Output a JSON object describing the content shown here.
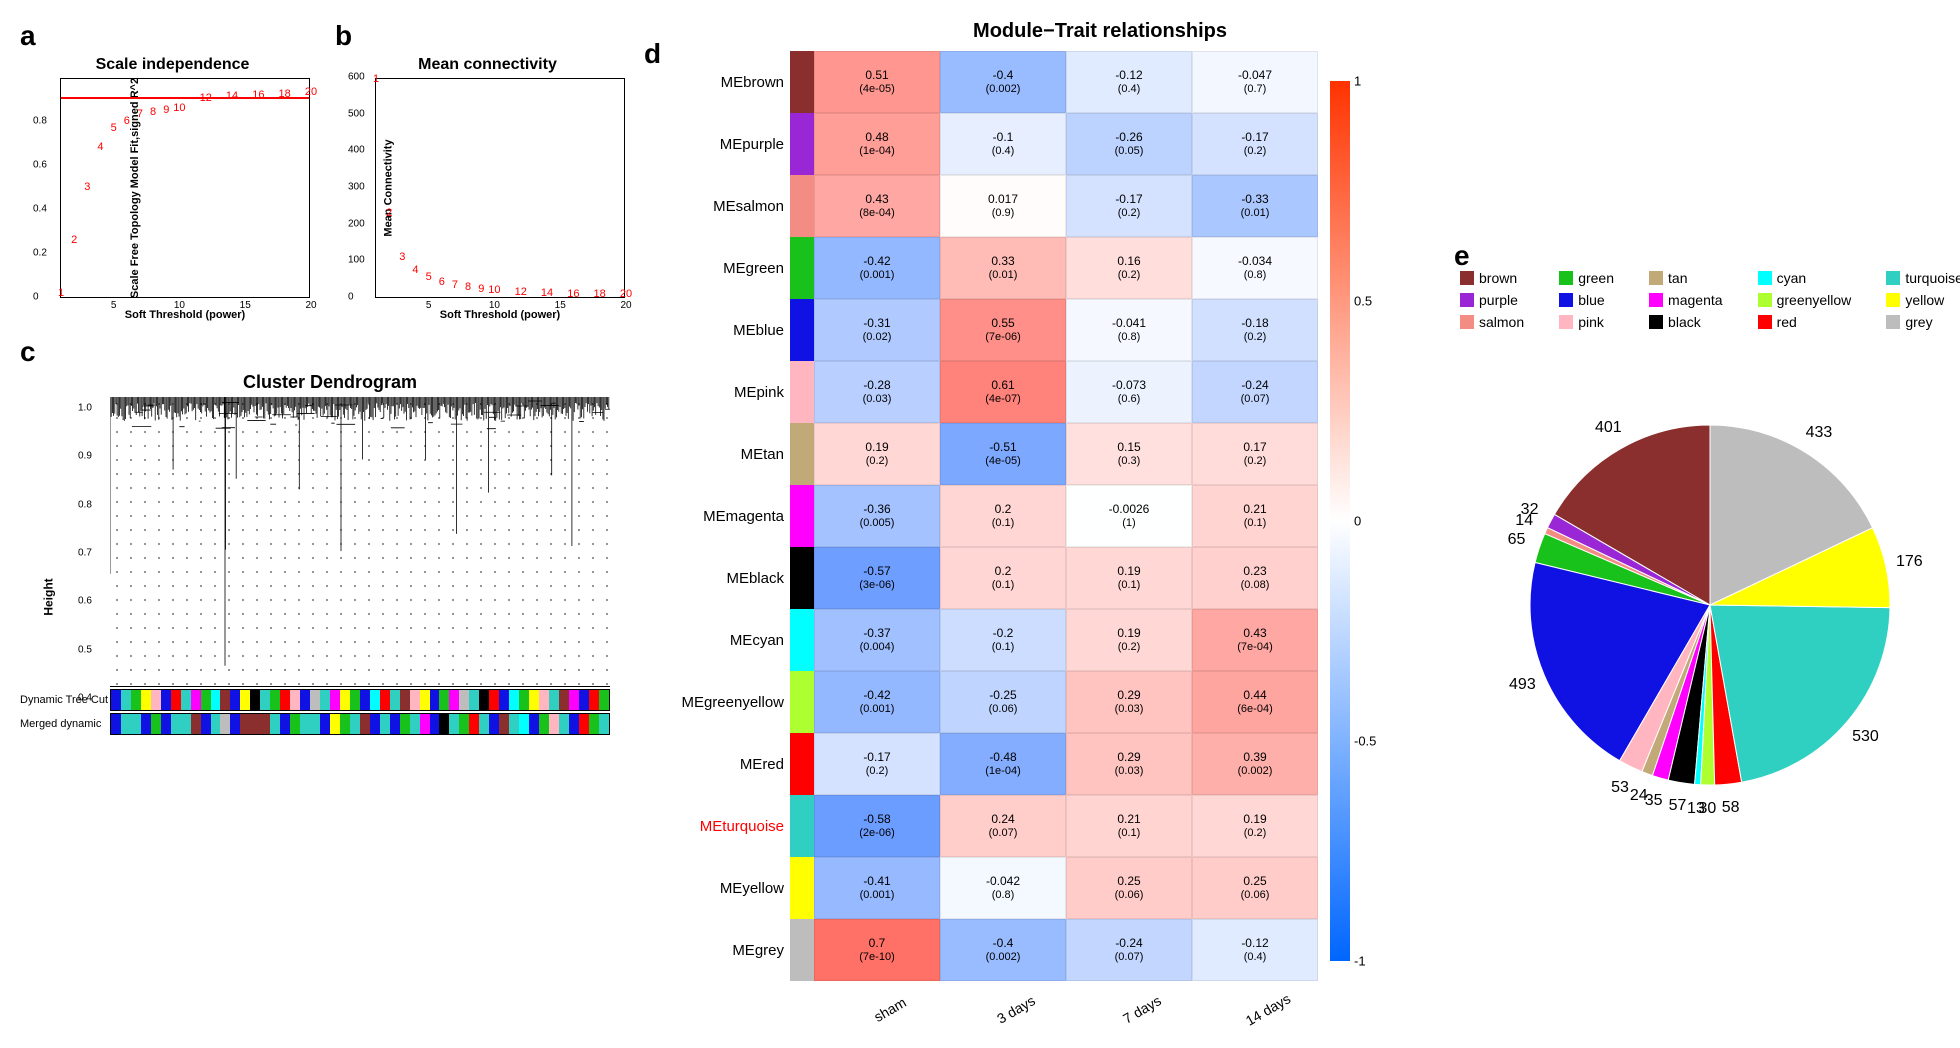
{
  "colors": {
    "brown": "#8b2e2e",
    "purple": "#9a27d6",
    "salmon": "#f38c82",
    "green": "#18c21a",
    "blue": "#1012e3",
    "pink": "#ffb6c1",
    "tan": "#c2a978",
    "magenta": "#ff00ff",
    "black": "#000000",
    "cyan": "#00ffff",
    "greenyellow": "#adff2f",
    "red": "#ff0000",
    "turquoise": "#2fd0c1",
    "yellow": "#ffff00",
    "grey": "#bdbdbd"
  },
  "panel_a": {
    "label": "a",
    "title": "Scale independence",
    "xlabel": "Soft Threshold (power)",
    "ylabel": "Scale Free Topology Model Fit,signed R^2",
    "xlim": [
      1,
      20
    ],
    "ylim": [
      0,
      1
    ],
    "xticks": [
      5,
      10,
      15,
      20
    ],
    "yticks": [
      0.0,
      0.2,
      0.4,
      0.6,
      0.8
    ],
    "hline": 0.9,
    "points": [
      {
        "x": 1,
        "y": 0.02,
        "lbl": "1"
      },
      {
        "x": 2,
        "y": 0.26,
        "lbl": "2"
      },
      {
        "x": 3,
        "y": 0.5,
        "lbl": "3"
      },
      {
        "x": 4,
        "y": 0.68,
        "lbl": "4"
      },
      {
        "x": 5,
        "y": 0.77,
        "lbl": "5"
      },
      {
        "x": 6,
        "y": 0.8,
        "lbl": "6"
      },
      {
        "x": 7,
        "y": 0.83,
        "lbl": "7"
      },
      {
        "x": 8,
        "y": 0.84,
        "lbl": "8"
      },
      {
        "x": 9,
        "y": 0.85,
        "lbl": "9"
      },
      {
        "x": 10,
        "y": 0.86,
        "lbl": "10"
      },
      {
        "x": 12,
        "y": 0.905,
        "lbl": "12"
      },
      {
        "x": 14,
        "y": 0.915,
        "lbl": "14"
      },
      {
        "x": 16,
        "y": 0.92,
        "lbl": "16"
      },
      {
        "x": 18,
        "y": 0.925,
        "lbl": "18"
      },
      {
        "x": 20,
        "y": 0.93,
        "lbl": "20"
      }
    ]
  },
  "panel_b": {
    "label": "b",
    "title": "Mean connectivity",
    "xlabel": "Soft Threshold (power)",
    "ylabel": "Mean Connectivity",
    "xlim": [
      1,
      20
    ],
    "ylim": [
      0,
      600
    ],
    "xticks": [
      5,
      10,
      15,
      20
    ],
    "yticks": [
      0,
      100,
      200,
      300,
      400,
      500,
      600
    ],
    "points": [
      {
        "x": 1,
        "y": 595,
        "lbl": "1"
      },
      {
        "x": 2,
        "y": 230,
        "lbl": "2"
      },
      {
        "x": 3,
        "y": 110,
        "lbl": "3"
      },
      {
        "x": 4,
        "y": 75,
        "lbl": "4"
      },
      {
        "x": 5,
        "y": 55,
        "lbl": "5"
      },
      {
        "x": 6,
        "y": 40,
        "lbl": "6"
      },
      {
        "x": 7,
        "y": 32,
        "lbl": "7"
      },
      {
        "x": 8,
        "y": 26,
        "lbl": "8"
      },
      {
        "x": 9,
        "y": 22,
        "lbl": "9"
      },
      {
        "x": 10,
        "y": 18,
        "lbl": "10"
      },
      {
        "x": 12,
        "y": 14,
        "lbl": "12"
      },
      {
        "x": 14,
        "y": 11,
        "lbl": "14"
      },
      {
        "x": 16,
        "y": 9,
        "lbl": "16"
      },
      {
        "x": 18,
        "y": 8,
        "lbl": "18"
      },
      {
        "x": 20,
        "y": 7,
        "lbl": "20"
      }
    ]
  },
  "panel_c": {
    "label": "c",
    "title": "Cluster Dendrogram",
    "ylabel": "Height",
    "yticks": [
      0.4,
      0.5,
      0.6,
      0.7,
      0.8,
      0.9,
      1.0
    ],
    "row1_label": "Dynamic Tree Cut",
    "row2_label": "Merged dynamic",
    "band1": [
      "blue",
      "turquoise",
      "green",
      "yellow",
      "pink",
      "blue",
      "red",
      "turquoise",
      "magenta",
      "green",
      "cyan",
      "brown",
      "blue",
      "yellow",
      "black",
      "turquoise",
      "green",
      "red",
      "pink",
      "blue",
      "grey",
      "turquoise",
      "magenta",
      "yellow",
      "green",
      "blue",
      "cyan",
      "red",
      "turquoise",
      "brown",
      "pink",
      "yellow",
      "blue",
      "green",
      "magenta",
      "grey",
      "turquoise",
      "black",
      "red",
      "blue",
      "cyan",
      "green",
      "yellow",
      "pink",
      "turquoise",
      "brown",
      "magenta",
      "blue",
      "red",
      "green"
    ],
    "band2": [
      "blue",
      "turquoise",
      "turquoise",
      "blue",
      "green",
      "blue",
      "turquoise",
      "turquoise",
      "brown",
      "blue",
      "turquoise",
      "grey",
      "blue",
      "brown",
      "brown",
      "brown",
      "turquoise",
      "blue",
      "green",
      "turquoise",
      "turquoise",
      "blue",
      "yellow",
      "green",
      "turquoise",
      "brown",
      "blue",
      "turquoise",
      "blue",
      "green",
      "turquoise",
      "magenta",
      "blue",
      "black",
      "turquoise",
      "green",
      "red",
      "turquoise",
      "blue",
      "brown",
      "turquoise",
      "cyan",
      "blue",
      "green",
      "pink",
      "turquoise",
      "blue",
      "red",
      "green",
      "turquoise"
    ]
  },
  "panel_d": {
    "label": "d",
    "title": "Module−Trait relationships",
    "columns": [
      "sham",
      "3 days",
      "7 days",
      "14 days"
    ],
    "colorbar": {
      "min": -1,
      "max": 1,
      "ticks": [
        1,
        0.5,
        0,
        -0.5,
        -1
      ]
    },
    "rows": [
      {
        "name": "MEbrown",
        "color": "brown",
        "cells": [
          {
            "r": 0.51,
            "p": "4e-05"
          },
          {
            "r": -0.4,
            "p": "0.002"
          },
          {
            "r": -0.12,
            "p": "0.4"
          },
          {
            "r": -0.047,
            "p": "0.7"
          }
        ]
      },
      {
        "name": "MEpurple",
        "color": "purple",
        "cells": [
          {
            "r": 0.48,
            "p": "1e-04"
          },
          {
            "r": -0.1,
            "p": "0.4"
          },
          {
            "r": -0.26,
            "p": "0.05"
          },
          {
            "r": -0.17,
            "p": "0.2"
          }
        ]
      },
      {
        "name": "MEsalmon",
        "color": "salmon",
        "cells": [
          {
            "r": 0.43,
            "p": "8e-04"
          },
          {
            "r": 0.017,
            "p": "0.9"
          },
          {
            "r": -0.17,
            "p": "0.2"
          },
          {
            "r": -0.33,
            "p": "0.01"
          }
        ]
      },
      {
        "name": "MEgreen",
        "color": "green",
        "cells": [
          {
            "r": -0.42,
            "p": "0.001"
          },
          {
            "r": 0.33,
            "p": "0.01"
          },
          {
            "r": 0.16,
            "p": "0.2"
          },
          {
            "r": -0.034,
            "p": "0.8"
          }
        ]
      },
      {
        "name": "MEblue",
        "color": "blue",
        "cells": [
          {
            "r": -0.31,
            "p": "0.02"
          },
          {
            "r": 0.55,
            "p": "7e-06"
          },
          {
            "r": -0.041,
            "p": "0.8"
          },
          {
            "r": -0.18,
            "p": "0.2"
          }
        ]
      },
      {
        "name": "MEpink",
        "color": "pink",
        "cells": [
          {
            "r": -0.28,
            "p": "0.03"
          },
          {
            "r": 0.61,
            "p": "4e-07"
          },
          {
            "r": -0.073,
            "p": "0.6"
          },
          {
            "r": -0.24,
            "p": "0.07"
          }
        ]
      },
      {
        "name": "MEtan",
        "color": "tan",
        "cells": [
          {
            "r": 0.19,
            "p": "0.2"
          },
          {
            "r": -0.51,
            "p": "4e-05"
          },
          {
            "r": 0.15,
            "p": "0.3"
          },
          {
            "r": 0.17,
            "p": "0.2"
          }
        ]
      },
      {
        "name": "MEmagenta",
        "color": "magenta",
        "cells": [
          {
            "r": -0.36,
            "p": "0.005"
          },
          {
            "r": 0.2,
            "p": "0.1"
          },
          {
            "r": -0.0026,
            "p": "1"
          },
          {
            "r": 0.21,
            "p": "0.1"
          }
        ]
      },
      {
        "name": "MEblack",
        "color": "black",
        "cells": [
          {
            "r": -0.57,
            "p": "3e-06"
          },
          {
            "r": 0.2,
            "p": "0.1"
          },
          {
            "r": 0.19,
            "p": "0.1"
          },
          {
            "r": 0.23,
            "p": "0.08"
          }
        ]
      },
      {
        "name": "MEcyan",
        "color": "cyan",
        "cells": [
          {
            "r": -0.37,
            "p": "0.004"
          },
          {
            "r": -0.2,
            "p": "0.1"
          },
          {
            "r": 0.19,
            "p": "0.2"
          },
          {
            "r": 0.43,
            "p": "7e-04"
          }
        ]
      },
      {
        "name": "MEgreenyellow",
        "color": "greenyellow",
        "cells": [
          {
            "r": -0.42,
            "p": "0.001"
          },
          {
            "r": -0.25,
            "p": "0.06"
          },
          {
            "r": 0.29,
            "p": "0.03"
          },
          {
            "r": 0.44,
            "p": "6e-04"
          }
        ]
      },
      {
        "name": "MEred",
        "color": "red",
        "cells": [
          {
            "r": -0.17,
            "p": "0.2"
          },
          {
            "r": -0.48,
            "p": "1e-04"
          },
          {
            "r": 0.29,
            "p": "0.03"
          },
          {
            "r": 0.39,
            "p": "0.002"
          }
        ]
      },
      {
        "name": "MEturquoise",
        "color": "turquoise",
        "label_color": "#ff0000",
        "cells": [
          {
            "r": -0.58,
            "p": "2e-06"
          },
          {
            "r": 0.24,
            "p": "0.07"
          },
          {
            "r": 0.21,
            "p": "0.1"
          },
          {
            "r": 0.19,
            "p": "0.2"
          }
        ]
      },
      {
        "name": "MEyellow",
        "color": "yellow",
        "cells": [
          {
            "r": -0.41,
            "p": "0.001"
          },
          {
            "r": -0.042,
            "p": "0.8"
          },
          {
            "r": 0.25,
            "p": "0.06"
          },
          {
            "r": 0.25,
            "p": "0.06"
          }
        ]
      },
      {
        "name": "MEgrey",
        "color": "grey",
        "cells": [
          {
            "r": 0.7,
            "p": "7e-10"
          },
          {
            "r": -0.4,
            "p": "0.002"
          },
          {
            "r": -0.24,
            "p": "0.07"
          },
          {
            "r": -0.12,
            "p": "0.4"
          }
        ]
      }
    ]
  },
  "panel_e": {
    "label": "e",
    "legend": [
      "brown",
      "purple",
      "salmon",
      "green",
      "blue",
      "pink",
      "tan",
      "magenta",
      "black",
      "cyan",
      "greenyellow",
      "red",
      "turquoise",
      "yellow",
      "grey"
    ],
    "slices": [
      {
        "color": "brown",
        "n": 401
      },
      {
        "color": "purple",
        "n": 32
      },
      {
        "color": "salmon",
        "n": 14
      },
      {
        "color": "green",
        "n": 65
      },
      {
        "color": "blue",
        "n": 493
      },
      {
        "color": "pink",
        "n": 53
      },
      {
        "color": "tan",
        "n": 24
      },
      {
        "color": "magenta",
        "n": 35
      },
      {
        "color": "black",
        "n": 57
      },
      {
        "color": "cyan",
        "n": 13
      },
      {
        "color": "greenyellow",
        "n": 30
      },
      {
        "color": "red",
        "n": 58
      },
      {
        "color": "turquoise",
        "n": 530
      },
      {
        "color": "yellow",
        "n": 176
      },
      {
        "color": "grey",
        "n": 433
      }
    ]
  }
}
